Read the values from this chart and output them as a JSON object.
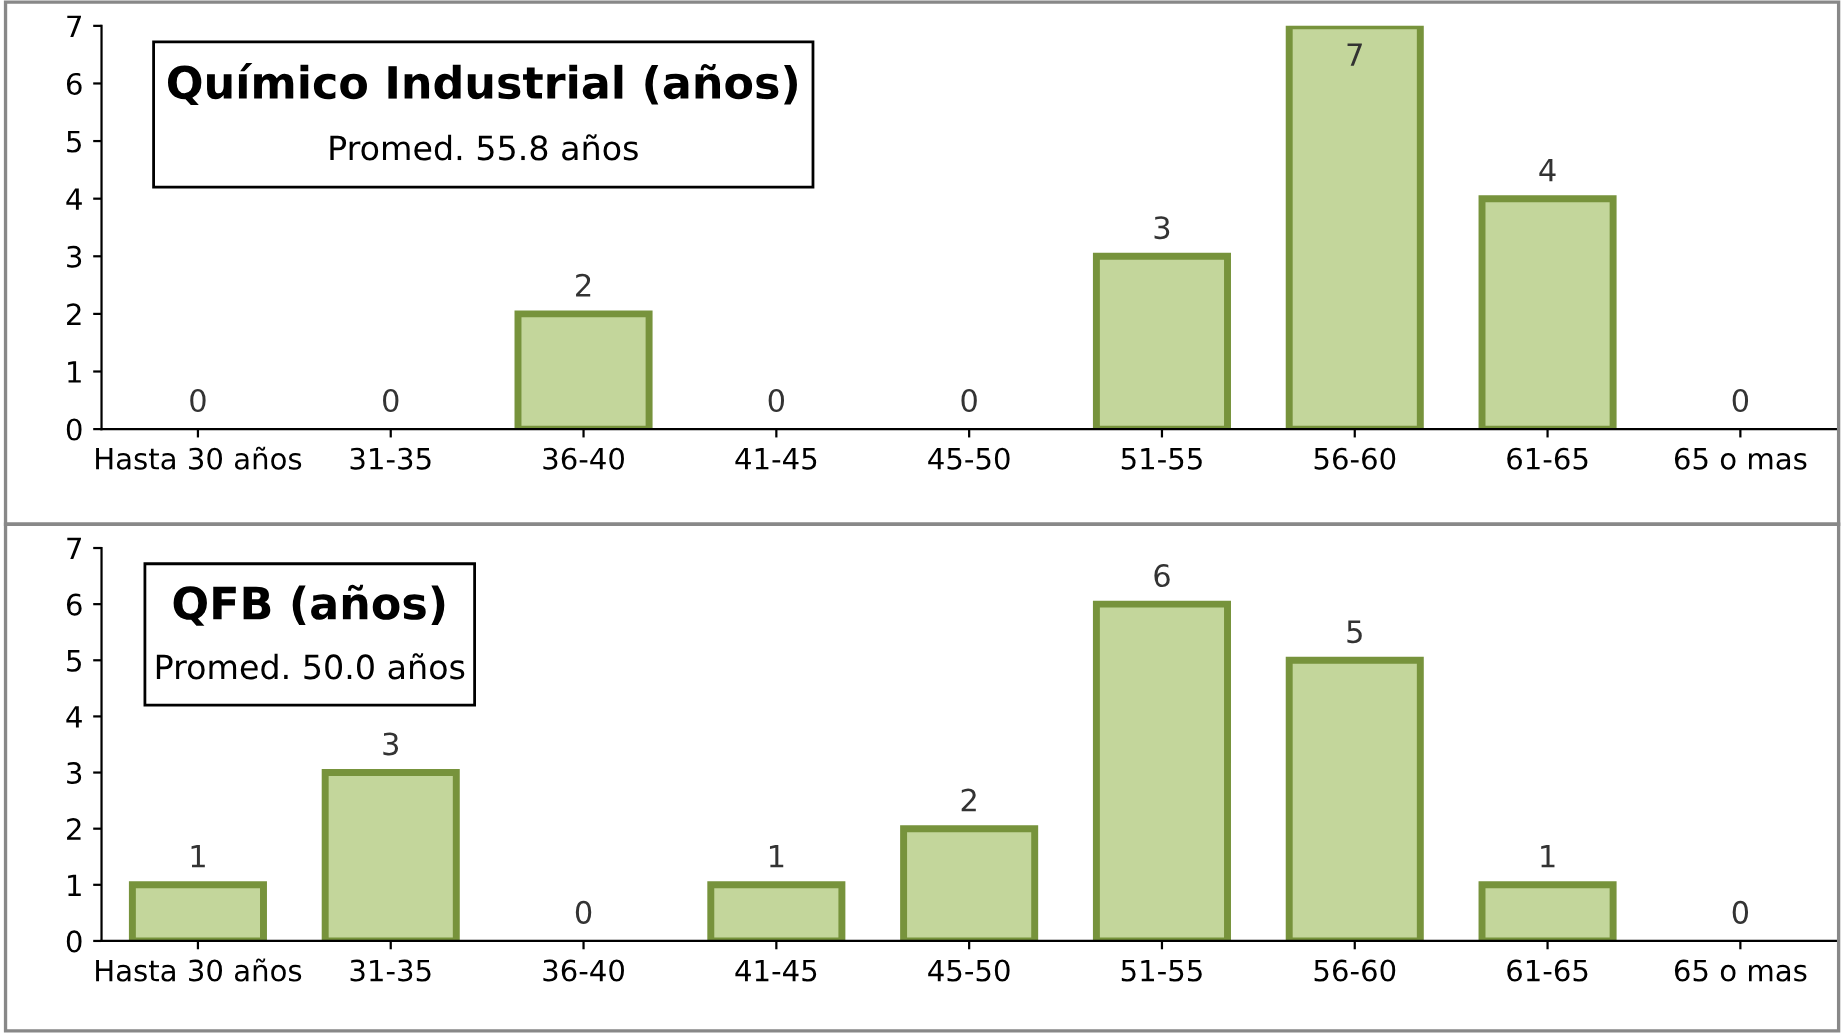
{
  "chart_data": [
    {
      "type": "bar",
      "title": "Químico Industrial (años)",
      "subtitle": "Promed. 55.8 años",
      "categories": [
        "Hasta 30 años",
        "31-35",
        "36-40",
        "41-45",
        "45-50",
        "51-55",
        "56-60",
        "61-65",
        "65 o mas"
      ],
      "values": [
        0,
        0,
        2,
        0,
        0,
        3,
        7,
        4,
        0
      ],
      "color": "#c3d69b",
      "ylim": [
        0,
        7
      ],
      "yticks": [
        0,
        1,
        2,
        3,
        4,
        5,
        6,
        7
      ],
      "grid": false,
      "data_labels": true
    },
    {
      "type": "bar",
      "title": "QFB (años)",
      "subtitle": "Promed. 50.0 años",
      "categories": [
        "Hasta 30 años",
        "31-35",
        "36-40",
        "41-45",
        "45-50",
        "51-55",
        "56-60",
        "61-65",
        "65 o mas"
      ],
      "values": [
        1,
        3,
        0,
        1,
        2,
        6,
        5,
        1,
        0
      ],
      "color": "#c3d69b",
      "ylim": [
        0,
        7
      ],
      "yticks": [
        0,
        1,
        2,
        3,
        4,
        5,
        6,
        7
      ],
      "grid": false,
      "data_labels": true
    }
  ]
}
